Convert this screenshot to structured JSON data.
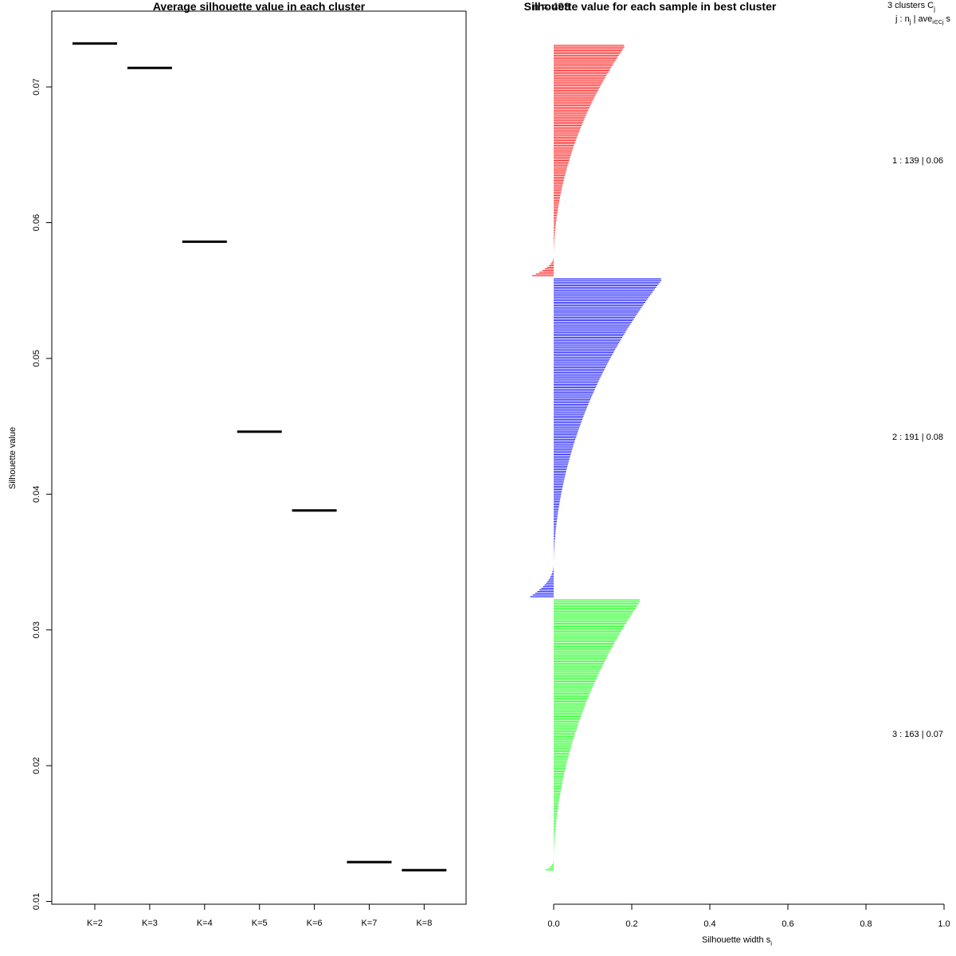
{
  "chart_data": [
    {
      "type": "segment",
      "title": "Average silhouette value in each cluster",
      "xlabel": "",
      "ylabel": "Silhouette value",
      "ylim": [
        0.01,
        0.075
      ],
      "yticks": [
        "0.01",
        "0.02",
        "0.03",
        "0.04",
        "0.05",
        "0.06",
        "0.07"
      ],
      "categories": [
        "K=2",
        "K=3",
        "K=4",
        "K=5",
        "K=6",
        "K=7",
        "K=8"
      ],
      "values": [
        0.0732,
        0.0714,
        0.0586,
        0.0446,
        0.0388,
        0.0129,
        0.0123
      ],
      "grid": false
    },
    {
      "type": "bar",
      "orientation": "horizontal",
      "title": "Silhouette value for each sample in best cluster",
      "subtitle_overlap": "n = 493",
      "xlabel": "Silhouette width s",
      "xlabel_subscript": "i",
      "xlim": [
        0,
        1
      ],
      "xticks": [
        "0.0",
        "0.2",
        "0.4",
        "0.6",
        "0.8",
        "1.0"
      ],
      "legend_header_1": "3  clusters  C",
      "legend_header_1_sub": "j",
      "legend_header_2": "j :  n",
      "legend_header_2_sub1": "j",
      "legend_header_2_mid": " | ave",
      "legend_header_2_sub2": "i∈Cj",
      "legend_header_2_tail": "  s",
      "series": [
        {
          "name": "cluster 1",
          "color": "#ff0000",
          "n": 139,
          "label": "1 :   139  |  0.06",
          "max_width": 0.18,
          "min_width": -0.055,
          "n_negative": 12
        },
        {
          "name": "cluster 2",
          "color": "#0000ff",
          "n": 191,
          "label": "2 :   191  |  0.08",
          "max_width": 0.275,
          "min_width": -0.06,
          "n_negative": 20
        },
        {
          "name": "cluster 3",
          "color": "#00ff00",
          "n": 163,
          "label": "3 :   163  |  0.07",
          "max_width": 0.22,
          "min_width": -0.02,
          "n_negative": 6
        }
      ]
    }
  ]
}
